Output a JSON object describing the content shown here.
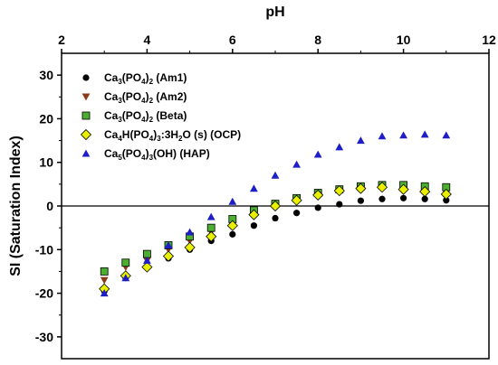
{
  "chart_data": {
    "type": "scatter",
    "xlabel": "pH",
    "ylabel": "SI (Saturation Index)",
    "xlim": [
      2,
      12
    ],
    "ylim": [
      -35,
      35
    ],
    "x_ticks": [
      2,
      4,
      6,
      8,
      10,
      12
    ],
    "y_ticks": [
      -30,
      -20,
      -10,
      0,
      10,
      20,
      30
    ],
    "x_axis_position": "top",
    "zero_line": true,
    "grid": false,
    "legend_position": "top-left",
    "series": [
      {
        "name": "Ca3(PO4)2 (Am1)",
        "label_parts": [
          [
            "Ca",
            "n"
          ],
          [
            "3",
            "sub"
          ],
          [
            "(PO",
            "n"
          ],
          [
            "4",
            "sub"
          ],
          [
            ")",
            "n"
          ],
          [
            "2",
            "sub"
          ],
          [
            " (Am1)",
            "n"
          ]
        ],
        "marker": "circle",
        "color": "#000000",
        "x": [
          3.0,
          3.5,
          4.0,
          4.5,
          5.0,
          5.5,
          6.0,
          6.5,
          7.0,
          7.5,
          8.0,
          8.5,
          9.0,
          9.5,
          10.0,
          10.5,
          11.0
        ],
        "y": [
          -19.5,
          -16.5,
          -14.0,
          -12.0,
          -10.0,
          -8.0,
          -6.5,
          -4.5,
          -2.8,
          -1.6,
          -0.4,
          0.4,
          1.2,
          1.6,
          1.8,
          1.6,
          1.3
        ]
      },
      {
        "name": "Ca3(PO4)2 (Am2)",
        "label_parts": [
          [
            "Ca",
            "n"
          ],
          [
            "3",
            "sub"
          ],
          [
            "(PO",
            "n"
          ],
          [
            "4",
            "sub"
          ],
          [
            ")",
            "n"
          ],
          [
            "2",
            "sub"
          ],
          [
            " (Am2)",
            "n"
          ]
        ],
        "marker": "triangle-down",
        "color": "#8b3a1a",
        "x": [
          3.0,
          3.5,
          4.0,
          4.5,
          5.0,
          5.5,
          6.0,
          6.5,
          7.0,
          7.5,
          8.0,
          8.5,
          9.0,
          9.5,
          10.0,
          10.5,
          11.0
        ],
        "y": [
          -17.0,
          -14.0,
          -12.5,
          -10.0,
          -8.0,
          -6.0,
          -3.5,
          -1.5,
          0.0,
          1.3,
          2.5,
          3.3,
          4.0,
          4.3,
          4.2,
          3.8,
          3.3
        ]
      },
      {
        "name": "Ca3(PO4)2 (Beta)",
        "label_parts": [
          [
            "Ca",
            "n"
          ],
          [
            "3",
            "sub"
          ],
          [
            "(PO",
            "n"
          ],
          [
            "4",
            "sub"
          ],
          [
            ")",
            "n"
          ],
          [
            "2",
            "sub"
          ],
          [
            " (Beta)",
            "n"
          ]
        ],
        "marker": "square",
        "color": "#4caf2f",
        "x": [
          3.0,
          3.5,
          4.0,
          4.5,
          5.0,
          5.5,
          6.0,
          6.5,
          7.0,
          7.5,
          8.0,
          8.5,
          9.0,
          9.5,
          10.0,
          10.5,
          11.0
        ],
        "y": [
          -15.0,
          -13.0,
          -11.0,
          -9.0,
          -7.0,
          -5.0,
          -3.0,
          -1.0,
          0.5,
          1.8,
          3.0,
          3.8,
          4.5,
          4.8,
          4.8,
          4.5,
          4.3
        ]
      },
      {
        "name": "Ca4H(PO4)3:3H2O (s) (OCP)",
        "label_parts": [
          [
            "Ca",
            "n"
          ],
          [
            "4",
            "sub"
          ],
          [
            "H(PO",
            "n"
          ],
          [
            "4",
            "sub"
          ],
          [
            ")",
            "n"
          ],
          [
            "3",
            "sub"
          ],
          [
            ":3H",
            "n"
          ],
          [
            "2",
            "sub"
          ],
          [
            "O (s) (OCP)",
            "n"
          ]
        ],
        "marker": "diamond",
        "color": "#e8f000",
        "x": [
          3.0,
          3.5,
          4.0,
          4.5,
          5.0,
          5.5,
          6.0,
          6.5,
          7.0,
          7.5,
          8.0,
          8.5,
          9.0,
          9.5,
          10.0,
          10.5,
          11.0
        ],
        "y": [
          -19.0,
          -16.0,
          -14.0,
          -11.5,
          -9.5,
          -7.0,
          -4.5,
          -2.0,
          0.0,
          1.3,
          2.5,
          3.5,
          4.0,
          4.3,
          3.8,
          3.3,
          2.7
        ]
      },
      {
        "name": "Ca5(PO4)3(OH) (HAP)",
        "label_parts": [
          [
            "Ca",
            "n"
          ],
          [
            "5",
            "sub"
          ],
          [
            "(PO",
            "n"
          ],
          [
            "4",
            "sub"
          ],
          [
            ")",
            "n"
          ],
          [
            "3",
            "sub"
          ],
          [
            "(OH) (HAP)",
            "n"
          ]
        ],
        "marker": "triangle-up",
        "color": "#1e1ec8",
        "x": [
          3.0,
          3.5,
          4.0,
          4.5,
          5.0,
          5.5,
          6.0,
          6.5,
          7.0,
          7.5,
          8.0,
          8.5,
          9.0,
          9.5,
          10.0,
          10.5,
          11.0
        ],
        "y": [
          -20.0,
          -16.5,
          -12.5,
          -9.0,
          -6.0,
          -2.5,
          1.0,
          4.0,
          7.0,
          9.5,
          11.8,
          13.5,
          15.0,
          16.0,
          16.2,
          16.4,
          16.2
        ]
      }
    ]
  }
}
